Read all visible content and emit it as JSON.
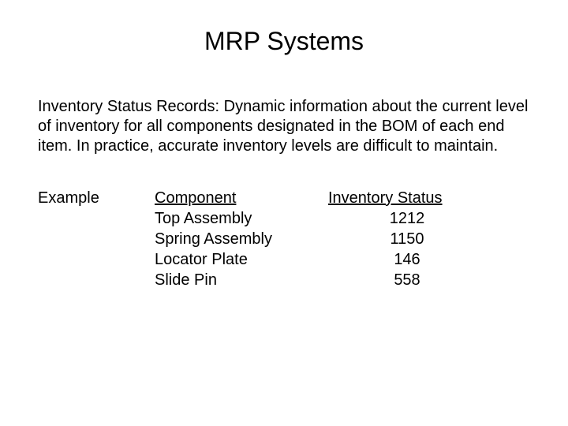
{
  "title": "MRP Systems",
  "body": "Inventory Status Records:  Dynamic information about the current level of inventory for all components designated in the BOM of each end item.  In practice, accurate inventory levels are difficult to maintain.",
  "example_label": "Example",
  "table": {
    "type": "table",
    "headers": {
      "component": "Component",
      "status": "Inventory Status"
    },
    "rows": [
      {
        "component": "Top Assembly",
        "status": "1212"
      },
      {
        "component": "Spring Assembly",
        "status": "1150"
      },
      {
        "component": "Locator Plate",
        "status": "146"
      },
      {
        "component": "Slide Pin",
        "status": "558"
      }
    ],
    "font_size_pt": 20,
    "text_color": "#000000",
    "background_color": "#ffffff"
  }
}
